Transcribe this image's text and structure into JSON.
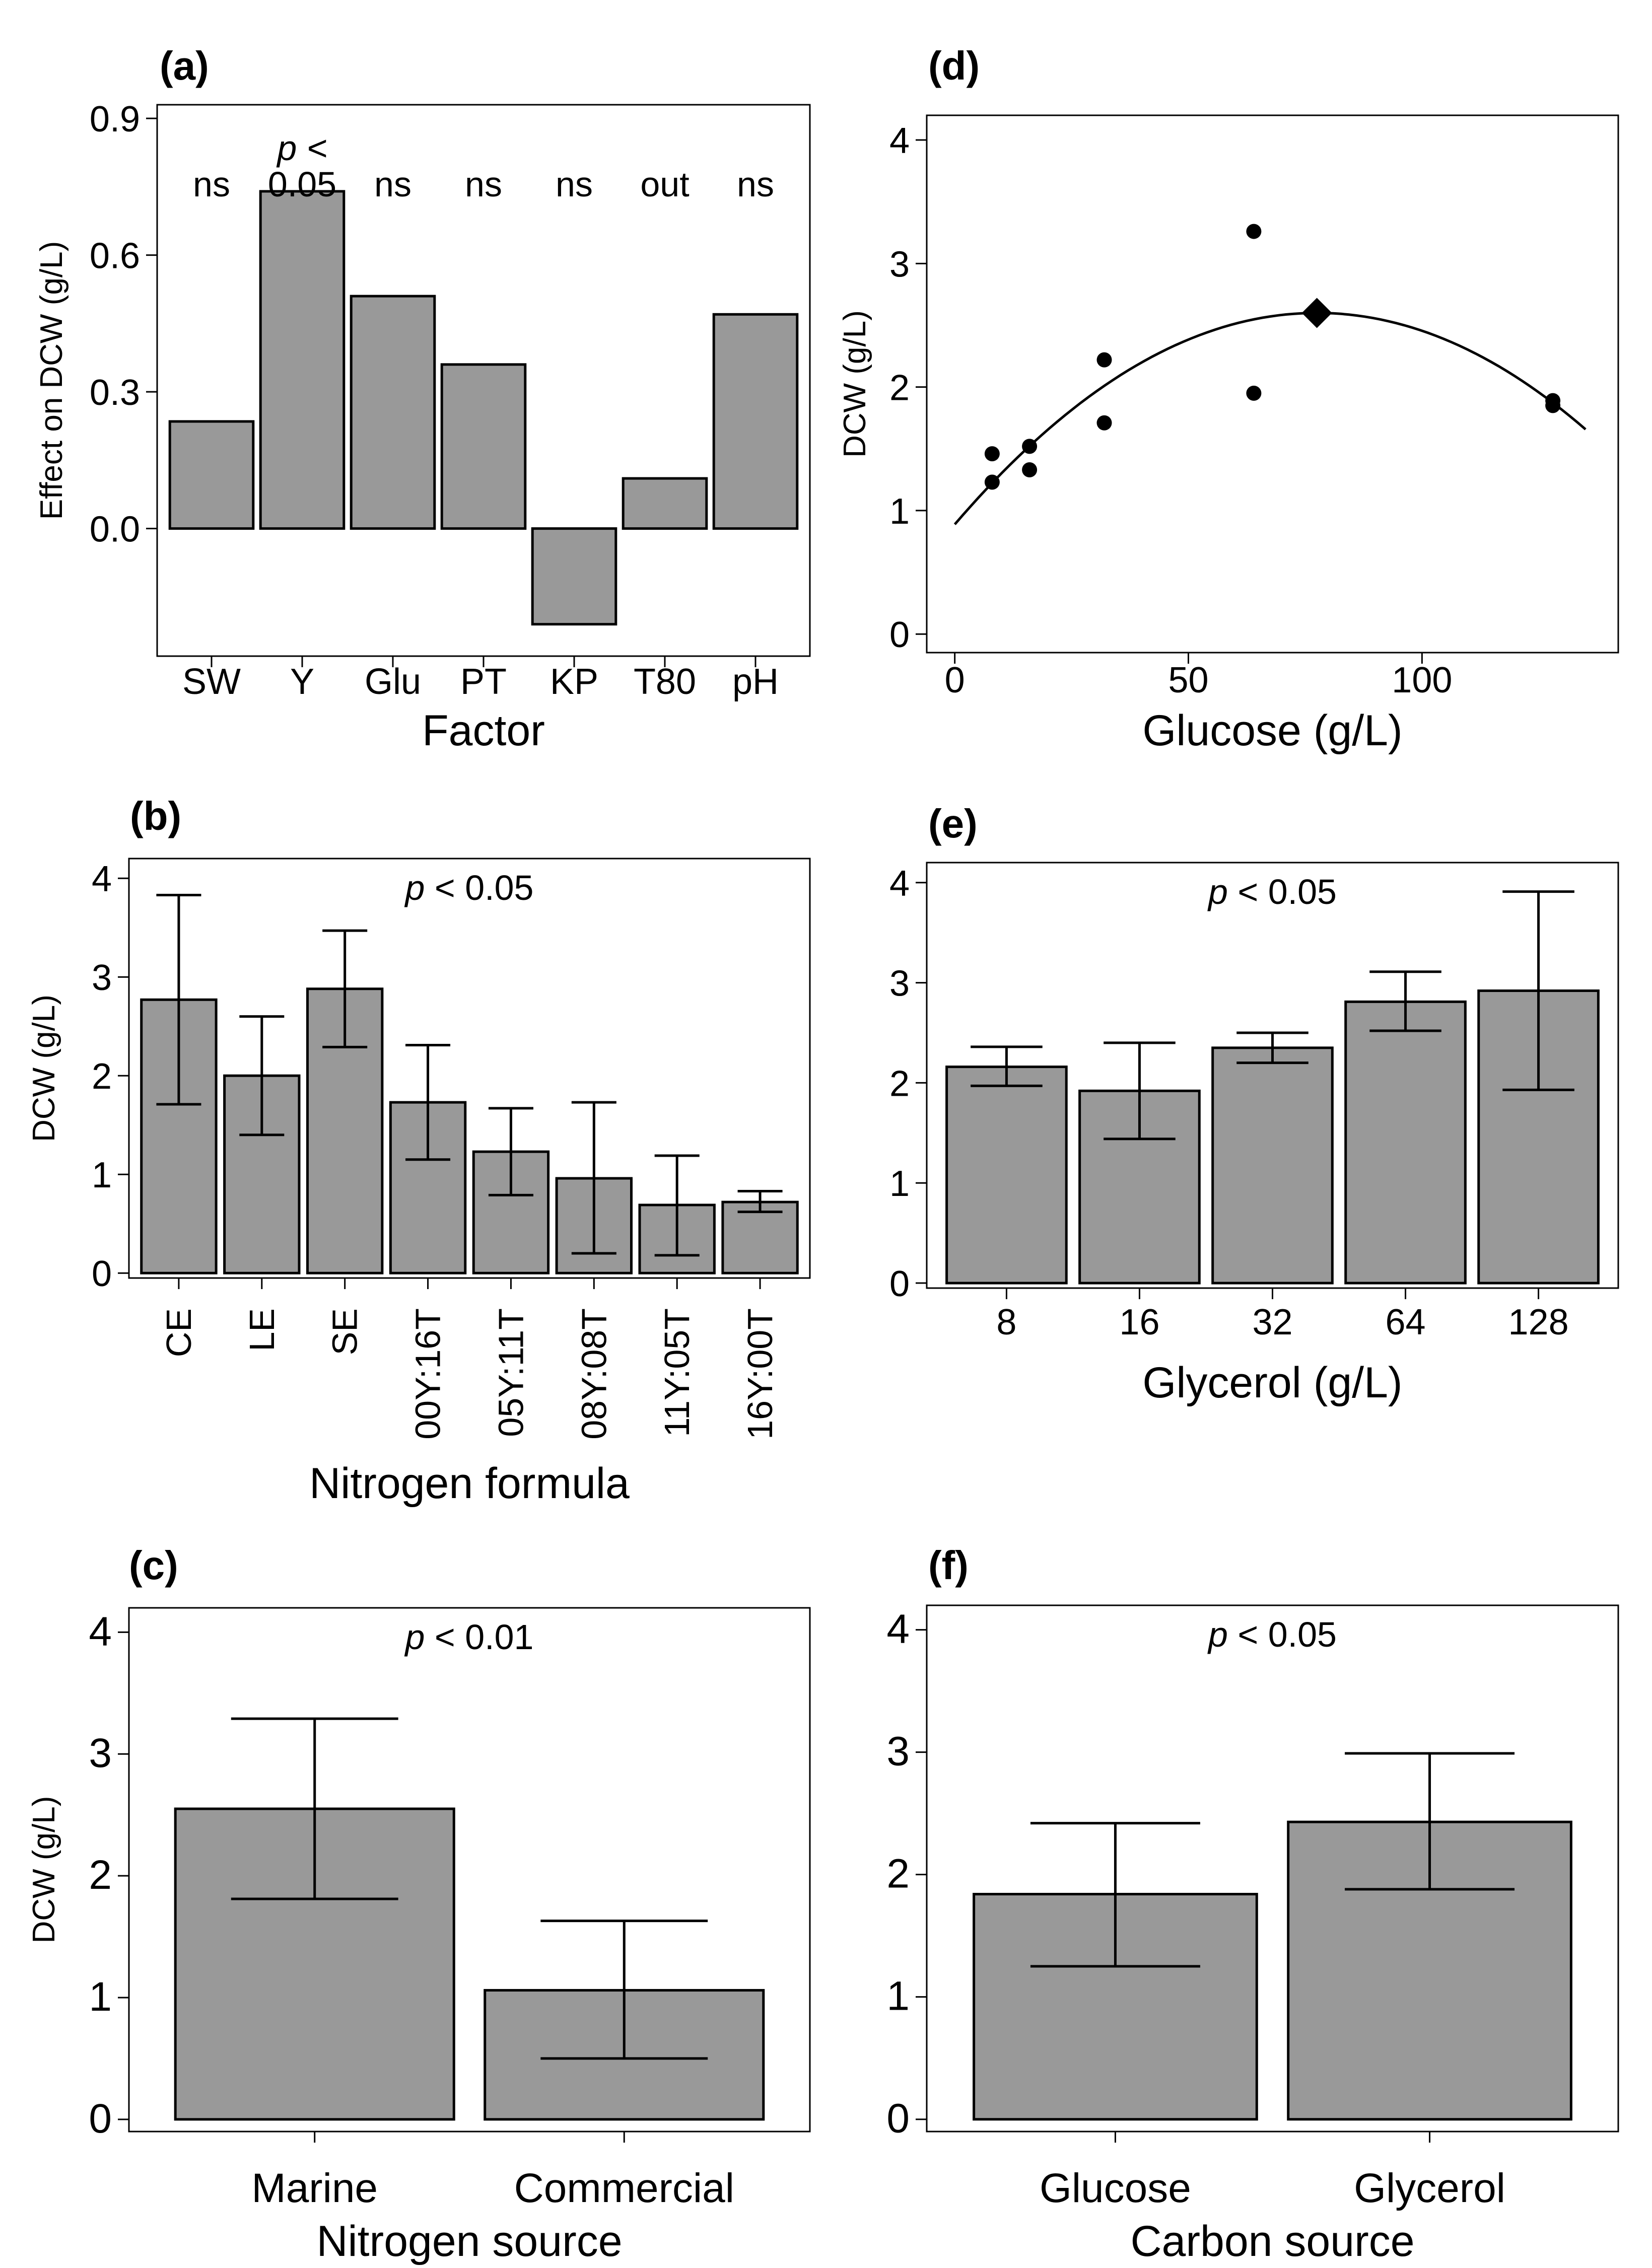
{
  "chart_data": [
    {
      "panel": "(a)",
      "type": "bar",
      "xlabel": "Factor",
      "ylabel": "Effect on DCW (g/L)",
      "ylim": [
        -0.28,
        0.93
      ],
      "yticks": [
        0.0,
        0.3,
        0.6,
        0.9
      ],
      "ytick_labels": [
        "0.0",
        "0.3",
        "0.6",
        "0.9"
      ],
      "categories": [
        "SW",
        "Y",
        "Glu",
        "PT",
        "KP",
        "T80",
        "pH"
      ],
      "values": [
        0.235,
        0.74,
        0.51,
        0.36,
        -0.21,
        0.11,
        0.47
      ],
      "annotations": [
        {
          "lines": [
            "ns"
          ]
        },
        {
          "lines": [
            "p <",
            "0.05"
          ],
          "italic_first": true
        },
        {
          "lines": [
            "ns"
          ]
        },
        {
          "lines": [
            "ns"
          ]
        },
        {
          "lines": [
            "ns"
          ]
        },
        {
          "lines": [
            "out"
          ]
        },
        {
          "lines": [
            "ns"
          ]
        }
      ]
    },
    {
      "panel": "(b)",
      "type": "bar",
      "xlabel": "Nitrogen formula",
      "ylabel": "DCW (g/L)",
      "ylim": [
        -0.05,
        4.2
      ],
      "yticks": [
        0,
        1,
        2,
        3,
        4
      ],
      "ytick_labels": [
        "0",
        "1",
        "2",
        "3",
        "4"
      ],
      "categories": [
        "CE",
        "LE",
        "SE",
        "00Y:16T",
        "05Y:11T",
        "08Y:08T",
        "11Y:05T",
        "16Y:00T"
      ],
      "values": [
        2.77,
        2.0,
        2.88,
        1.73,
        1.23,
        0.96,
        0.69,
        0.72
      ],
      "errors": [
        [
          1.71,
          3.83
        ],
        [
          1.4,
          2.6
        ],
        [
          2.29,
          3.47
        ],
        [
          1.15,
          2.31
        ],
        [
          0.79,
          1.67
        ],
        [
          0.2,
          1.73
        ],
        [
          0.18,
          1.19
        ],
        [
          0.62,
          0.83
        ]
      ],
      "p_label": "p",
      "p_value": "< 0.05",
      "rotate_ticks": true
    },
    {
      "panel": "(c)",
      "type": "bar",
      "xlabel": "Nitrogen source",
      "ylabel": "DCW (g/L)",
      "ylim": [
        -0.1,
        4.2
      ],
      "yticks": [
        0,
        1,
        2,
        3,
        4
      ],
      "ytick_labels": [
        "0",
        "1",
        "2",
        "3",
        "4"
      ],
      "categories": [
        "Marine",
        "Commercial"
      ],
      "values": [
        2.55,
        1.06
      ],
      "errors": [
        [
          1.81,
          3.29
        ],
        [
          0.5,
          1.63
        ]
      ],
      "p_label": "p",
      "p_value": "< 0.01"
    },
    {
      "panel": "(d)",
      "type": "scatter",
      "xlabel": "Glucose (g/L)",
      "ylabel": "DCW (g/L)",
      "xlim": [
        -6,
        142
      ],
      "ylim": [
        -0.15,
        4.2
      ],
      "xticks": [
        0,
        50,
        100
      ],
      "xtick_labels": [
        "0",
        "50",
        "100"
      ],
      "yticks": [
        0,
        1,
        2,
        3,
        4
      ],
      "ytick_labels": [
        "0",
        "1",
        "2",
        "3",
        "4"
      ],
      "points": [
        {
          "x": 8,
          "y": 1.46
        },
        {
          "x": 8,
          "y": 1.23
        },
        {
          "x": 16,
          "y": 1.52
        },
        {
          "x": 16,
          "y": 1.33
        },
        {
          "x": 32,
          "y": 2.22
        },
        {
          "x": 32,
          "y": 1.71
        },
        {
          "x": 64,
          "y": 3.26
        },
        {
          "x": 64,
          "y": 1.95
        },
        {
          "x": 128,
          "y": 1.89
        },
        {
          "x": 128,
          "y": 1.85
        }
      ],
      "optimum": {
        "x": 77.5,
        "y": 2.6
      },
      "fit": {
        "type": "quadratic",
        "vertex_x": 77.5,
        "vertex_y": 2.6,
        "a": -0.000285,
        "x_range": [
          0,
          135
        ]
      }
    },
    {
      "panel": "(e)",
      "type": "bar",
      "xlabel": "Glycerol (g/L)",
      "ylabel": "",
      "ylim": [
        -0.05,
        4.2
      ],
      "yticks": [
        0,
        1,
        2,
        3,
        4
      ],
      "ytick_labels": [
        "0",
        "1",
        "2",
        "3",
        "4"
      ],
      "categories": [
        "8",
        "16",
        "32",
        "64",
        "128"
      ],
      "values": [
        2.16,
        1.92,
        2.35,
        2.81,
        2.92
      ],
      "errors": [
        [
          1.97,
          2.36
        ],
        [
          1.44,
          2.4
        ],
        [
          2.2,
          2.5
        ],
        [
          2.52,
          3.11
        ],
        [
          1.93,
          3.91
        ]
      ],
      "p_label": "p",
      "p_value": "< 0.05"
    },
    {
      "panel": "(f)",
      "type": "bar",
      "xlabel": "Carbon source",
      "ylabel": "",
      "ylim": [
        -0.1,
        4.2
      ],
      "yticks": [
        0,
        1,
        2,
        3,
        4
      ],
      "ytick_labels": [
        "0",
        "1",
        "2",
        "3",
        "4"
      ],
      "categories": [
        "Glucose",
        "Glycerol"
      ],
      "values": [
        1.84,
        2.43
      ],
      "errors": [
        [
          1.25,
          2.42
        ],
        [
          1.88,
          2.99
        ]
      ],
      "p_label": "p",
      "p_value": "< 0.05"
    }
  ]
}
